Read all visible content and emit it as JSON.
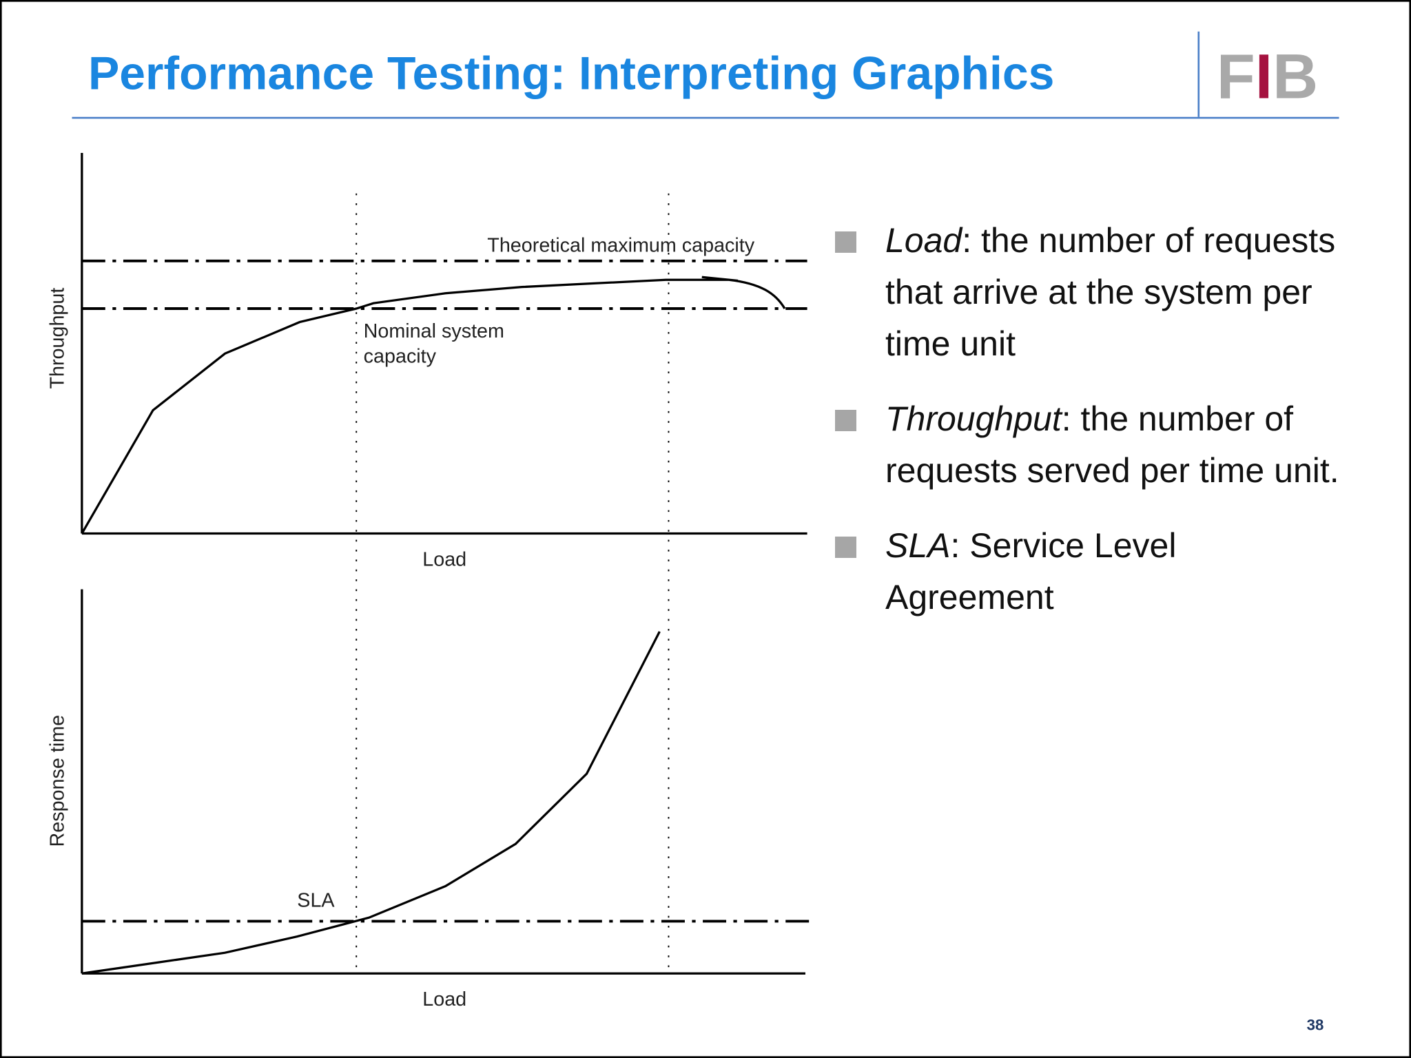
{
  "title": "Performance Testing: Interpreting Graphics",
  "logo": [
    "F",
    "I",
    "B"
  ],
  "figure": {
    "top": {
      "y_label": "Throughput",
      "x_label": "Load",
      "max_label": "Theoretical maximum capacity",
      "nominal_label": [
        "Nominal system",
        "capacity"
      ]
    },
    "bottom": {
      "y_label": "Response time",
      "x_label": "Load",
      "sla_label": "SLA"
    }
  },
  "bullets": [
    {
      "term": "Load",
      "text": ": the number of requests that arrive at the system per time unit"
    },
    {
      "term": "Throughput",
      "text": ": the number of requests served per time unit."
    },
    {
      "term": "SLA",
      "text": ": Service Level Agreement"
    }
  ],
  "page_number": "38"
}
